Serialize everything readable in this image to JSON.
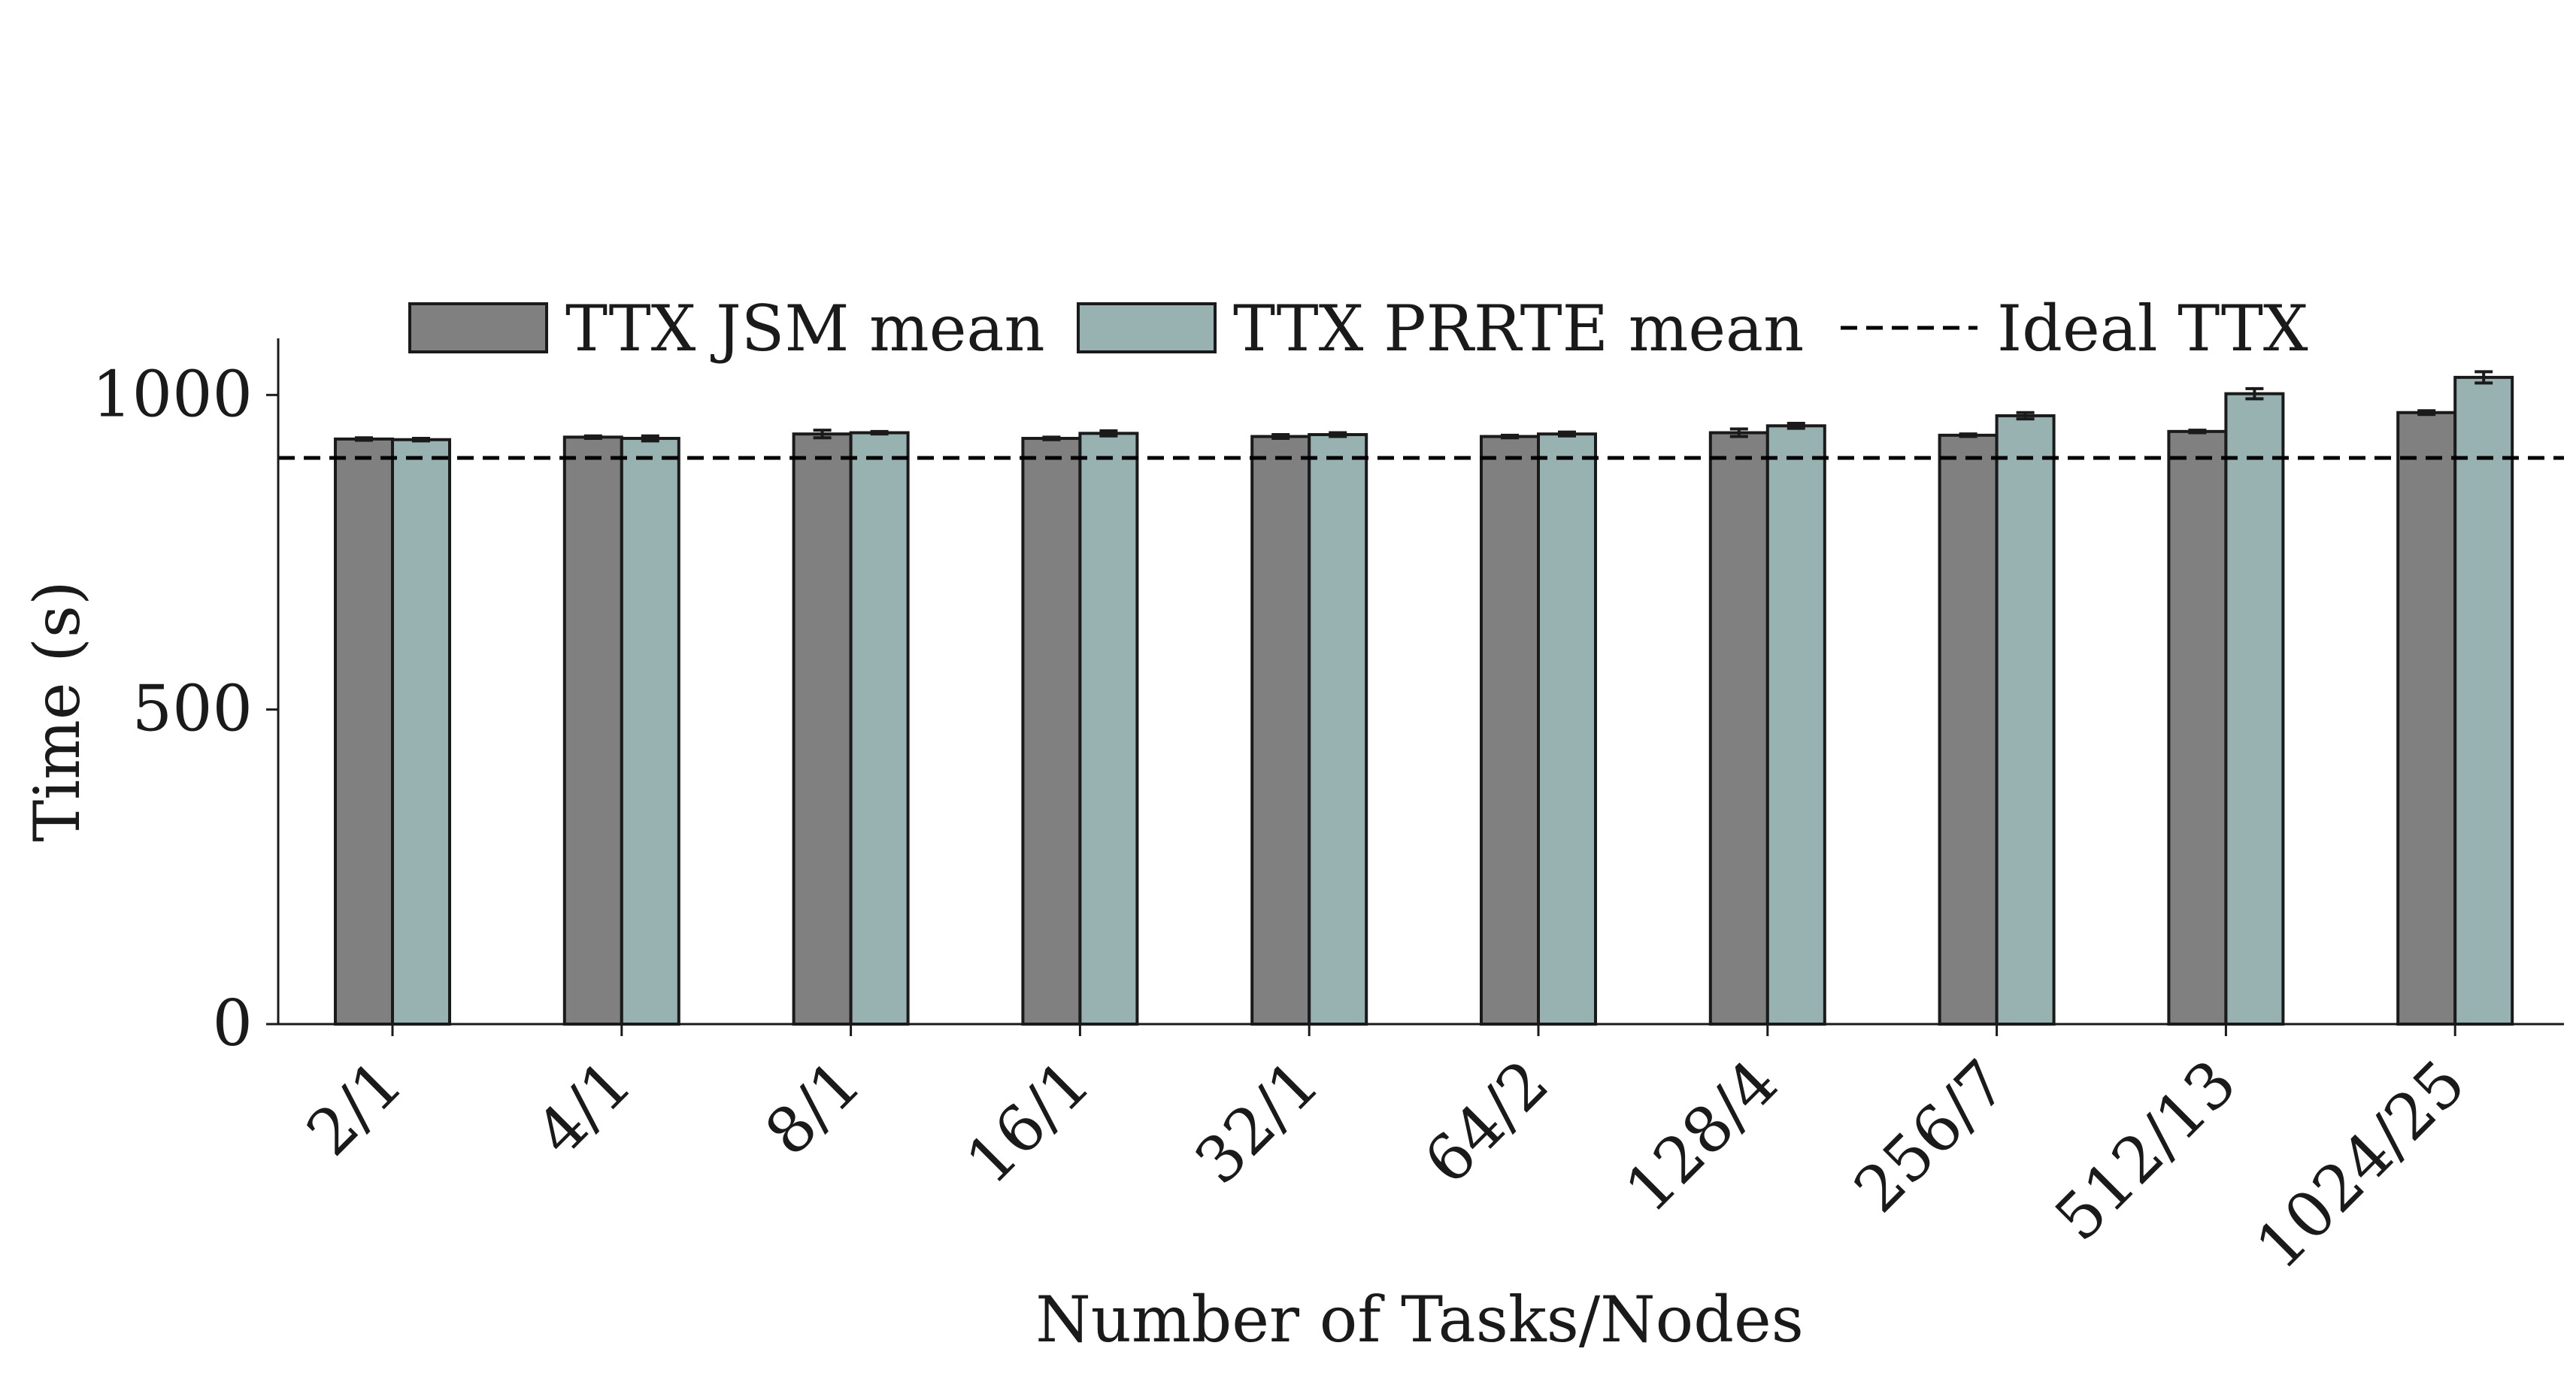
{
  "chart_data": {
    "type": "bar",
    "title": "",
    "xlabel": "Number of Tasks/Nodes",
    "ylabel": "Time (s)",
    "ylim": [
      0,
      1090
    ],
    "yticks": [
      0,
      500,
      1000
    ],
    "grid": false,
    "legend_position": "top",
    "categories": [
      "2/1",
      "4/1",
      "8/1",
      "16/1",
      "32/1",
      "64/2",
      "128/4",
      "256/7",
      "512/13",
      "1024/25"
    ],
    "series": [
      {
        "name": "TTX JSM mean",
        "color": "#808080",
        "values": [
          930,
          933,
          938,
          931,
          934,
          934,
          940,
          936,
          942,
          972
        ],
        "errors": [
          2,
          2,
          6,
          2,
          3,
          2,
          6,
          2,
          2,
          3
        ]
      },
      {
        "name": "TTX PRRTE mean",
        "color": "#98b1b1",
        "values": [
          929,
          931,
          940,
          939,
          937,
          938,
          951,
          967,
          1002,
          1028
        ],
        "errors": [
          2,
          4,
          2,
          4,
          3,
          3,
          4,
          5,
          8,
          9
        ]
      }
    ],
    "reference_line": {
      "name": "Ideal TTX",
      "value": 900,
      "style": "dashed",
      "color": "#000000"
    }
  }
}
